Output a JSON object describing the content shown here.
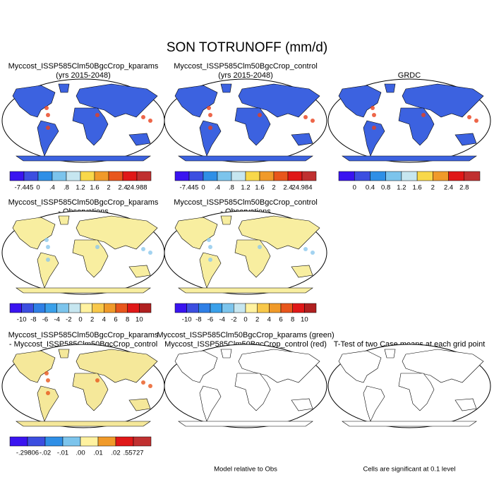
{
  "title": "SON TOTRUNOFF (mm/d)",
  "panels": [
    {
      "title": [
        "Myccost_ISSP585Clm50BgcCrop_kparams",
        "(yrs 2015-2048)"
      ],
      "colorbar": {
        "labels": [
          "-7.445",
          "0",
          ".4",
          ".8",
          "1.2",
          "1.6",
          "2",
          "2.4",
          "24.988"
        ],
        "colors": [
          "#3a14f0",
          "#3c4ee0",
          "#2f8fe6",
          "#7cc4ec",
          "#c6e6f0",
          "#f8d84a",
          "#f09a2a",
          "#e8561c",
          "#e01818",
          "#c03030"
        ]
      }
    },
    {
      "title": [
        "Myccost_ISSP585Clm50BgcCrop_control",
        "(yrs 2015-2048)"
      ],
      "colorbar": {
        "labels": [
          "-7.445",
          "0",
          ".4",
          ".8",
          "1.2",
          "1.6",
          "2",
          "2.4",
          "24.984"
        ],
        "colors": [
          "#3a14f0",
          "#3c4ee0",
          "#2f8fe6",
          "#7cc4ec",
          "#c6e6f0",
          "#f8d84a",
          "#f09a2a",
          "#e8561c",
          "#e01818",
          "#c03030"
        ]
      }
    },
    {
      "title": [
        "GRDC"
      ],
      "colorbar": {
        "labels": [
          "0",
          "0.4",
          "0.8",
          "1.2",
          "1.6",
          "2",
          "2.4",
          "2.8"
        ],
        "colors": [
          "#3a14f0",
          "#3c4ee0",
          "#2f8fe6",
          "#7cc4ec",
          "#c6e6f0",
          "#f8d84a",
          "#f09a2a",
          "#e01818",
          "#c03030"
        ]
      }
    },
    {
      "title": [
        "Myccost_ISSP585Clm50BgcCrop_kparams",
        "- Observations"
      ],
      "colorbar": {
        "labels": [
          "-10",
          "-8",
          "-6",
          "-4",
          "-2",
          "0",
          "2",
          "4",
          "6",
          "8",
          "10"
        ],
        "colors": [
          "#3a14f0",
          "#3c4ee0",
          "#2f7fe6",
          "#3aa0ea",
          "#7cc4ec",
          "#c6e6f0",
          "#fff2a0",
          "#f8c84a",
          "#f09a2a",
          "#e8561c",
          "#e01818",
          "#b02020"
        ]
      }
    },
    {
      "title": [
        "Myccost_ISSP585Clm50BgcCrop_control",
        "- Observations"
      ],
      "colorbar": {
        "labels": [
          "-10",
          "-8",
          "-6",
          "-4",
          "-2",
          "0",
          "2",
          "4",
          "6",
          "8",
          "10"
        ],
        "colors": [
          "#3a14f0",
          "#3c4ee0",
          "#2f7fe6",
          "#3aa0ea",
          "#7cc4ec",
          "#c6e6f0",
          "#fff2a0",
          "#f8c84a",
          "#f09a2a",
          "#e8561c",
          "#e01818",
          "#b02020"
        ]
      }
    },
    {
      "title": [
        "Myccost_ISSP585Clm50BgcCrop_kparams",
        "- Myccost_ISSP585Clm50BgcCrop_control"
      ],
      "colorbar": {
        "labels": [
          "-.29806",
          "-.02",
          "-.01",
          ".00",
          ".01",
          ".02",
          ".55727"
        ],
        "colors": [
          "#3a14f0",
          "#3c4ee0",
          "#2f8fe6",
          "#7cc4ec",
          "#fff2a0",
          "#f09a2a",
          "#e01818",
          "#c03030"
        ]
      }
    },
    {
      "title": [
        "Myccost_ISSP585Clm50BgcCrop_kparams (green)",
        "Myccost_ISSP585Clm50BgcCrop_control (red)"
      ],
      "note": "Model relative to Obs"
    },
    {
      "title": [
        "T-Test of two Case means at each grid point"
      ],
      "note": "Cells are significant at 0.1 level"
    }
  ]
}
